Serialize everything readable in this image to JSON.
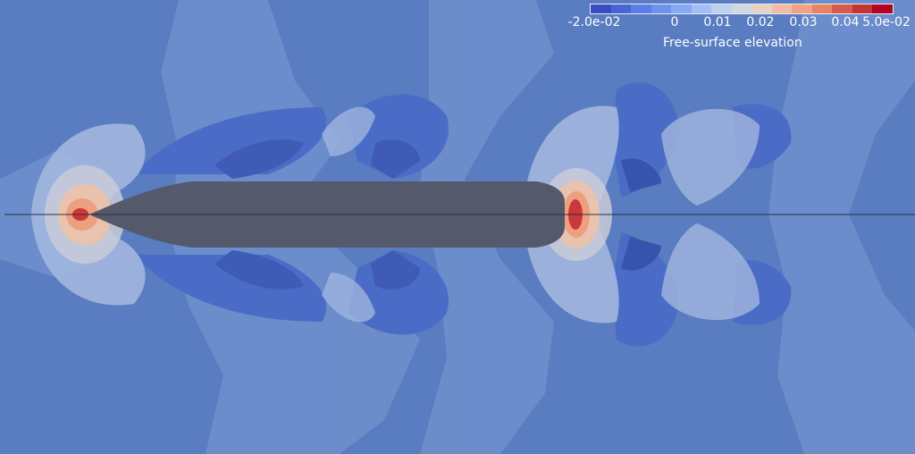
{
  "colorbar": {
    "title": "Free-surface elevation",
    "ticks": [
      "-2.0e-02",
      "0",
      "0.01",
      "0.02",
      "0.03",
      "0.04",
      "5.0e-02"
    ],
    "colors": [
      "#3b4cc0",
      "#4a64d6",
      "#5b7ee6",
      "#6e93ef",
      "#86a9f5",
      "#a3bef4",
      "#bcd0ef",
      "#d2d8e2",
      "#e6d2c2",
      "#f1bca3",
      "#f2a283",
      "#ea8364",
      "#d95a48",
      "#c33533",
      "#b40426"
    ]
  },
  "scene": {
    "background_color": "#5a7cc0",
    "hull_color": "#545a6c",
    "centerline_color": "#2b2f3a"
  }
}
